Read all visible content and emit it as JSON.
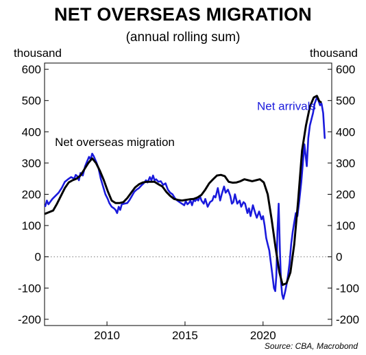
{
  "title": "NET OVERSEAS MIGRATION",
  "subtitle": "(annual rolling sum)",
  "unit_left": "thousand",
  "unit_right": "thousand",
  "source": "Source: CBA, Macrobond",
  "colors": {
    "net_arrivals": "#1a1adc",
    "nom": "#000000",
    "axis": "#000000",
    "zero_line": "#777777"
  },
  "chart_data": {
    "type": "line",
    "title": "NET OVERSEAS MIGRATION",
    "subtitle": "(annual rolling sum)",
    "ylabel_left": "thousand",
    "ylabel_right": "thousand",
    "xlim": [
      2006.0,
      2024.4
    ],
    "ylim": [
      -220,
      620
    ],
    "x_ticks": [
      2010,
      2015,
      2020
    ],
    "y_ticks": [
      -200,
      -100,
      0,
      100,
      200,
      300,
      400,
      500,
      600
    ],
    "y_tick_labels": [
      "-200",
      "-100",
      "0",
      "100",
      "200",
      "300",
      "400",
      "500",
      "600"
    ],
    "x_tick_labels": [
      "2010",
      "2015",
      "2020"
    ],
    "grid": false,
    "zero_line": true,
    "annotations": [
      {
        "text": "Net arrivals",
        "series": "Net arrivals",
        "at_x": 2021.5,
        "at_y": 470
      },
      {
        "text": "Net overseas migration",
        "series": "Net overseas migration",
        "at_x": 2010.5,
        "at_y": 355
      }
    ],
    "series": [
      {
        "name": "Net arrivals",
        "color": "#1a1adc",
        "points": [
          [
            2006.05,
            162
          ],
          [
            2006.15,
            180
          ],
          [
            2006.25,
            168
          ],
          [
            2006.35,
            175
          ],
          [
            2006.5,
            185
          ],
          [
            2006.7,
            195
          ],
          [
            2006.9,
            205
          ],
          [
            2007.1,
            220
          ],
          [
            2007.3,
            240
          ],
          [
            2007.5,
            248
          ],
          [
            2007.7,
            255
          ],
          [
            2007.9,
            250
          ],
          [
            2008.0,
            262
          ],
          [
            2008.1,
            258
          ],
          [
            2008.2,
            245
          ],
          [
            2008.3,
            268
          ],
          [
            2008.45,
            260
          ],
          [
            2008.6,
            290
          ],
          [
            2008.75,
            308
          ],
          [
            2008.85,
            320
          ],
          [
            2008.95,
            312
          ],
          [
            2009.05,
            330
          ],
          [
            2009.15,
            322
          ],
          [
            2009.3,
            305
          ],
          [
            2009.45,
            285
          ],
          [
            2009.6,
            250
          ],
          [
            2009.75,
            225
          ],
          [
            2009.9,
            200
          ],
          [
            2010.05,
            185
          ],
          [
            2010.15,
            172
          ],
          [
            2010.3,
            160
          ],
          [
            2010.45,
            155
          ],
          [
            2010.55,
            150
          ],
          [
            2010.65,
            140
          ],
          [
            2010.75,
            160
          ],
          [
            2010.85,
            150
          ],
          [
            2010.95,
            168
          ],
          [
            2011.1,
            170
          ],
          [
            2011.3,
            172
          ],
          [
            2011.45,
            182
          ],
          [
            2011.6,
            195
          ],
          [
            2011.75,
            208
          ],
          [
            2011.9,
            215
          ],
          [
            2012.05,
            220
          ],
          [
            2012.2,
            228
          ],
          [
            2012.35,
            235
          ],
          [
            2012.5,
            245
          ],
          [
            2012.6,
            238
          ],
          [
            2012.75,
            255
          ],
          [
            2012.85,
            245
          ],
          [
            2012.95,
            260
          ],
          [
            2013.05,
            245
          ],
          [
            2013.15,
            248
          ],
          [
            2013.3,
            240
          ],
          [
            2013.45,
            242
          ],
          [
            2013.6,
            230
          ],
          [
            2013.75,
            235
          ],
          [
            2013.9,
            215
          ],
          [
            2014.05,
            205
          ],
          [
            2014.2,
            200
          ],
          [
            2014.35,
            188
          ],
          [
            2014.5,
            180
          ],
          [
            2014.65,
            175
          ],
          [
            2014.8,
            170
          ],
          [
            2014.95,
            165
          ],
          [
            2015.05,
            178
          ],
          [
            2015.15,
            168
          ],
          [
            2015.25,
            172
          ],
          [
            2015.35,
            180
          ],
          [
            2015.45,
            165
          ],
          [
            2015.55,
            182
          ],
          [
            2015.65,
            178
          ],
          [
            2015.75,
            185
          ],
          [
            2015.85,
            180
          ],
          [
            2015.95,
            195
          ],
          [
            2016.05,
            180
          ],
          [
            2016.2,
            170
          ],
          [
            2016.3,
            185
          ],
          [
            2016.45,
            160
          ],
          [
            2016.6,
            175
          ],
          [
            2016.75,
            180
          ],
          [
            2016.85,
            195
          ],
          [
            2016.95,
            190
          ],
          [
            2017.1,
            220
          ],
          [
            2017.25,
            180
          ],
          [
            2017.35,
            200
          ],
          [
            2017.5,
            225
          ],
          [
            2017.6,
            205
          ],
          [
            2017.75,
            215
          ],
          [
            2017.9,
            195
          ],
          [
            2018.0,
            170
          ],
          [
            2018.1,
            175
          ],
          [
            2018.2,
            200
          ],
          [
            2018.35,
            170
          ],
          [
            2018.5,
            180
          ],
          [
            2018.6,
            160
          ],
          [
            2018.75,
            175
          ],
          [
            2018.85,
            170
          ],
          [
            2019.0,
            140
          ],
          [
            2019.1,
            155
          ],
          [
            2019.2,
            130
          ],
          [
            2019.35,
            165
          ],
          [
            2019.5,
            140
          ],
          [
            2019.6,
            125
          ],
          [
            2019.75,
            145
          ],
          [
            2019.9,
            120
          ],
          [
            2020.0,
            130
          ],
          [
            2020.1,
            100
          ],
          [
            2020.2,
            60
          ],
          [
            2020.3,
            40
          ],
          [
            2020.4,
            20
          ],
          [
            2020.5,
            -20
          ],
          [
            2020.6,
            -60
          ],
          [
            2020.7,
            -100
          ],
          [
            2020.78,
            -110
          ],
          [
            2020.85,
            -60
          ],
          [
            2020.92,
            80
          ],
          [
            2021.0,
            170
          ],
          [
            2021.08,
            20
          ],
          [
            2021.15,
            -80
          ],
          [
            2021.22,
            -120
          ],
          [
            2021.3,
            -135
          ],
          [
            2021.4,
            -115
          ],
          [
            2021.5,
            -90
          ],
          [
            2021.6,
            -60
          ],
          [
            2021.7,
            -20
          ],
          [
            2021.8,
            40
          ],
          [
            2021.9,
            80
          ],
          [
            2022.0,
            110
          ],
          [
            2022.1,
            140
          ],
          [
            2022.2,
            130
          ],
          [
            2022.3,
            170
          ],
          [
            2022.45,
            240
          ],
          [
            2022.55,
            300
          ],
          [
            2022.65,
            360
          ],
          [
            2022.8,
            290
          ],
          [
            2022.9,
            380
          ],
          [
            2023.0,
            420
          ],
          [
            2023.1,
            440
          ],
          [
            2023.2,
            460
          ],
          [
            2023.3,
            490
          ],
          [
            2023.45,
            510
          ],
          [
            2023.55,
            500
          ],
          [
            2023.65,
            485
          ],
          [
            2023.75,
            490
          ],
          [
            2023.85,
            460
          ],
          [
            2023.95,
            380
          ]
        ]
      },
      {
        "name": "Net overseas migration",
        "color": "#000000",
        "points": [
          [
            2006.05,
            138
          ],
          [
            2006.3,
            143
          ],
          [
            2006.55,
            148
          ],
          [
            2006.8,
            170
          ],
          [
            2007.05,
            195
          ],
          [
            2007.3,
            220
          ],
          [
            2007.55,
            238
          ],
          [
            2007.8,
            245
          ],
          [
            2008.05,
            250
          ],
          [
            2008.3,
            260
          ],
          [
            2008.55,
            280
          ],
          [
            2008.8,
            300
          ],
          [
            2009.05,
            315
          ],
          [
            2009.3,
            300
          ],
          [
            2009.55,
            275
          ],
          [
            2009.8,
            245
          ],
          [
            2010.05,
            210
          ],
          [
            2010.3,
            180
          ],
          [
            2010.55,
            172
          ],
          [
            2010.8,
            172
          ],
          [
            2011.05,
            175
          ],
          [
            2011.3,
            188
          ],
          [
            2011.55,
            205
          ],
          [
            2011.8,
            222
          ],
          [
            2012.05,
            232
          ],
          [
            2012.3,
            238
          ],
          [
            2012.55,
            240
          ],
          [
            2012.8,
            240
          ],
          [
            2013.05,
            240
          ],
          [
            2013.3,
            232
          ],
          [
            2013.55,
            225
          ],
          [
            2013.8,
            208
          ],
          [
            2014.05,
            195
          ],
          [
            2014.3,
            185
          ],
          [
            2014.55,
            182
          ],
          [
            2014.8,
            180
          ],
          [
            2015.05,
            182
          ],
          [
            2015.3,
            184
          ],
          [
            2015.55,
            185
          ],
          [
            2015.8,
            190
          ],
          [
            2016.05,
            198
          ],
          [
            2016.3,
            215
          ],
          [
            2016.55,
            235
          ],
          [
            2016.8,
            248
          ],
          [
            2017.05,
            260
          ],
          [
            2017.3,
            262
          ],
          [
            2017.55,
            258
          ],
          [
            2017.8,
            240
          ],
          [
            2018.05,
            237
          ],
          [
            2018.3,
            238
          ],
          [
            2018.55,
            242
          ],
          [
            2018.8,
            248
          ],
          [
            2019.05,
            245
          ],
          [
            2019.3,
            242
          ],
          [
            2019.55,
            245
          ],
          [
            2019.8,
            248
          ],
          [
            2020.05,
            238
          ],
          [
            2020.3,
            200
          ],
          [
            2020.55,
            120
          ],
          [
            2020.8,
            30
          ],
          [
            2021.05,
            -50
          ],
          [
            2021.25,
            -90
          ],
          [
            2021.5,
            -85
          ],
          [
            2021.75,
            -50
          ],
          [
            2022.0,
            40
          ],
          [
            2022.25,
            180
          ],
          [
            2022.5,
            340
          ],
          [
            2022.75,
            420
          ],
          [
            2023.0,
            480
          ],
          [
            2023.25,
            510
          ],
          [
            2023.45,
            515
          ],
          [
            2023.6,
            498
          ],
          [
            2023.7,
            495
          ]
        ]
      }
    ]
  }
}
